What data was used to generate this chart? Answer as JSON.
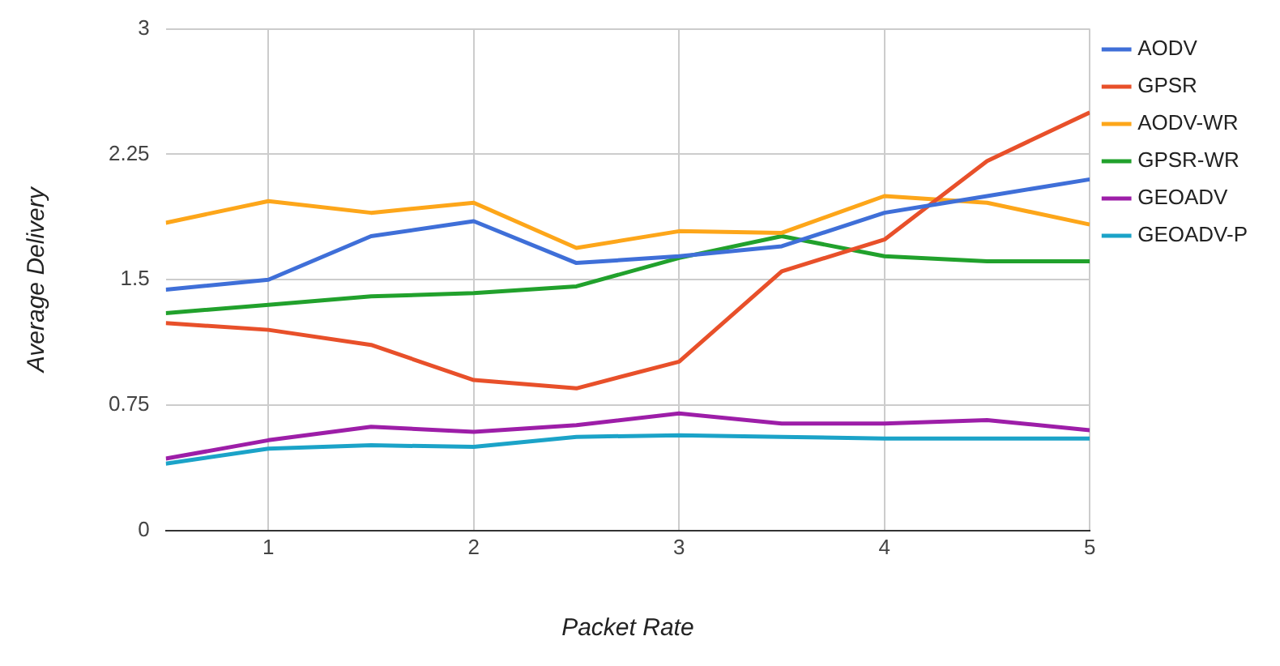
{
  "chart_data": {
    "type": "line",
    "xlabel": "Packet Rate",
    "ylabel": "Average Delivery",
    "x": [
      0.5,
      1,
      1.5,
      2,
      2.5,
      3,
      3.5,
      4,
      4.5,
      5
    ],
    "series": [
      {
        "name": "AODV",
        "color": "#3f6fd8",
        "values": [
          1.44,
          1.5,
          1.76,
          1.85,
          1.6,
          1.64,
          1.7,
          1.9,
          2.0,
          2.1
        ]
      },
      {
        "name": "GPSR",
        "color": "#e8502a",
        "values": [
          1.24,
          1.2,
          1.11,
          0.9,
          0.85,
          1.01,
          1.55,
          1.74,
          2.21,
          2.5
        ]
      },
      {
        "name": "AODV-WR",
        "color": "#fda61a",
        "values": [
          1.84,
          1.97,
          1.9,
          1.96,
          1.69,
          1.79,
          1.78,
          2.0,
          1.96,
          1.83
        ]
      },
      {
        "name": "GPSR-WR",
        "color": "#21a12c",
        "values": [
          1.3,
          1.35,
          1.4,
          1.42,
          1.46,
          1.63,
          1.76,
          1.64,
          1.61,
          1.61
        ]
      },
      {
        "name": "GEOADV",
        "color": "#9d1ea8",
        "values": [
          0.43,
          0.54,
          0.62,
          0.59,
          0.63,
          0.7,
          0.64,
          0.64,
          0.66,
          0.6
        ]
      },
      {
        "name": "GEOADV-P",
        "color": "#1ba3c8",
        "values": [
          0.4,
          0.49,
          0.51,
          0.5,
          0.56,
          0.57,
          0.56,
          0.55,
          0.55,
          0.55
        ]
      }
    ],
    "xlim": [
      0.5,
      5
    ],
    "xticks": [
      1,
      2,
      3,
      4,
      5
    ],
    "ylim": [
      0,
      3
    ],
    "yticks": [
      0,
      0.75,
      1.5,
      2.25,
      3
    ],
    "grid": true,
    "legend": "right",
    "marker": "none",
    "line_style": "solid"
  }
}
